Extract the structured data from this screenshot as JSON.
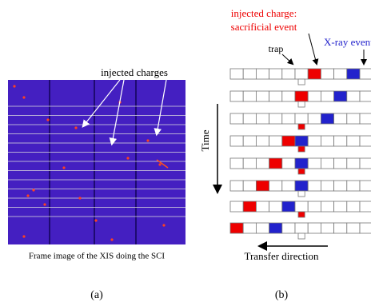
{
  "panel_a": {
    "label": "injected charges",
    "caption": "Frame image of the XIS doing the SCI",
    "tag": "(a)"
  },
  "panel_b": {
    "sacrificial_1": "injected charge:",
    "sacrificial_2": "sacrificial event",
    "xray": "X-ray event",
    "trap": "trap",
    "time": "Time",
    "transfer": "Transfer direction",
    "tag": "(b)"
  }
}
